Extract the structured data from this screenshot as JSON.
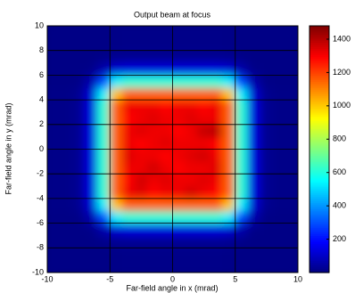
{
  "chart_data": {
    "type": "heatmap",
    "title": "Output beam at focus",
    "xlabel": "Far-field angle in x (mrad)",
    "ylabel": "Far-field angle in y (mrad)",
    "colormap": "jet",
    "grid": true,
    "grid_color": "#000000",
    "xlim": [
      -10,
      10
    ],
    "xticks": [
      -10,
      -5,
      0,
      5,
      10
    ],
    "ylim": [
      -10,
      10
    ],
    "yticks": [
      -10,
      -8,
      -6,
      -4,
      -2,
      0,
      2,
      4,
      6,
      8,
      10
    ],
    "zlim": [
      0,
      1480
    ],
    "zticks": [
      200,
      400,
      600,
      800,
      1000,
      1200,
      1400
    ],
    "x": [
      -9.5,
      -8.5,
      -7.5,
      -6.5,
      -5.5,
      -4.5,
      -3.5,
      -2.5,
      -1.5,
      -0.5,
      0.5,
      1.5,
      2.5,
      3.5,
      4.5,
      5.5,
      6.5,
      7.5,
      8.5,
      9.5
    ],
    "y": [
      -9.5,
      -8.5,
      -7.5,
      -6.5,
      -5.5,
      -4.5,
      -3.5,
      -2.5,
      -1.5,
      -0.5,
      0.5,
      1.5,
      2.5,
      3.5,
      4.5,
      5.5,
      6.5,
      7.5,
      8.5,
      9.5
    ],
    "z": [
      [
        10,
        10,
        10,
        10,
        10,
        12,
        14,
        14,
        14,
        14,
        14,
        14,
        14,
        14,
        12,
        10,
        10,
        10,
        10,
        10
      ],
      [
        10,
        10,
        10,
        10,
        10,
        12,
        14,
        14,
        14,
        14,
        14,
        14,
        14,
        14,
        12,
        10,
        10,
        10,
        10,
        10
      ],
      [
        10,
        10,
        10,
        10,
        13,
        24,
        27,
        27,
        27,
        27,
        27,
        27,
        27,
        27,
        24,
        13,
        10,
        10,
        10,
        10
      ],
      [
        10,
        10,
        10,
        14,
        63,
        119,
        136,
        136,
        136,
        136,
        136,
        136,
        136,
        136,
        119,
        63,
        14,
        10,
        10,
        10
      ],
      [
        10,
        10,
        13,
        63,
        284,
        536,
        611,
        611,
        611,
        611,
        611,
        611,
        611,
        611,
        536,
        284,
        63,
        13,
        10,
        10
      ],
      [
        12,
        12,
        24,
        119,
        536,
        1012,
        1154,
        1154,
        1154,
        1154,
        1154,
        1154,
        1154,
        1154,
        1012,
        536,
        119,
        24,
        12,
        12
      ],
      [
        14,
        14,
        27,
        136,
        611,
        1154,
        1317,
        1340,
        1290,
        1317,
        1317,
        1360,
        1317,
        1290,
        1154,
        611,
        136,
        27,
        14,
        14
      ],
      [
        14,
        14,
        27,
        136,
        611,
        1154,
        1290,
        1360,
        1317,
        1340,
        1317,
        1317,
        1340,
        1317,
        1154,
        611,
        136,
        27,
        14,
        14
      ],
      [
        14,
        14,
        27,
        136,
        611,
        1154,
        1317,
        1317,
        1360,
        1317,
        1290,
        1317,
        1317,
        1340,
        1154,
        611,
        136,
        27,
        14,
        14
      ],
      [
        14,
        14,
        27,
        136,
        611,
        1154,
        1340,
        1317,
        1317,
        1290,
        1317,
        1340,
        1360,
        1317,
        1154,
        611,
        136,
        27,
        14,
        14
      ],
      [
        14,
        14,
        27,
        136,
        611,
        1154,
        1317,
        1290,
        1317,
        1340,
        1317,
        1317,
        1317,
        1290,
        1154,
        611,
        136,
        27,
        14,
        14
      ],
      [
        14,
        14,
        27,
        136,
        611,
        1154,
        1317,
        1340,
        1317,
        1317,
        1290,
        1317,
        1380,
        1400,
        1154,
        611,
        136,
        27,
        14,
        14
      ],
      [
        14,
        14,
        27,
        136,
        611,
        1154,
        1290,
        1317,
        1340,
        1317,
        1317,
        1340,
        1317,
        1317,
        1154,
        611,
        136,
        27,
        14,
        14
      ],
      [
        14,
        14,
        27,
        136,
        611,
        1154,
        1317,
        1317,
        1317,
        1290,
        1317,
        1317,
        1290,
        1317,
        1154,
        611,
        136,
        27,
        14,
        14
      ],
      [
        12,
        12,
        24,
        119,
        536,
        1012,
        1154,
        1154,
        1154,
        1154,
        1154,
        1154,
        1154,
        1154,
        1012,
        536,
        119,
        24,
        12,
        12
      ],
      [
        10,
        10,
        13,
        63,
        284,
        536,
        611,
        611,
        611,
        611,
        611,
        611,
        611,
        611,
        536,
        284,
        63,
        13,
        10,
        10
      ],
      [
        10,
        10,
        10,
        14,
        63,
        119,
        136,
        136,
        136,
        136,
        136,
        136,
        136,
        136,
        119,
        63,
        14,
        10,
        10,
        10
      ],
      [
        10,
        10,
        10,
        10,
        13,
        24,
        27,
        27,
        27,
        27,
        27,
        27,
        27,
        27,
        24,
        13,
        10,
        10,
        10,
        10
      ],
      [
        10,
        10,
        10,
        10,
        10,
        12,
        14,
        14,
        14,
        14,
        14,
        14,
        14,
        14,
        12,
        10,
        10,
        10,
        10,
        10
      ],
      [
        10,
        10,
        10,
        10,
        10,
        12,
        14,
        14,
        14,
        14,
        14,
        14,
        14,
        14,
        12,
        10,
        10,
        10,
        10,
        10
      ]
    ]
  }
}
